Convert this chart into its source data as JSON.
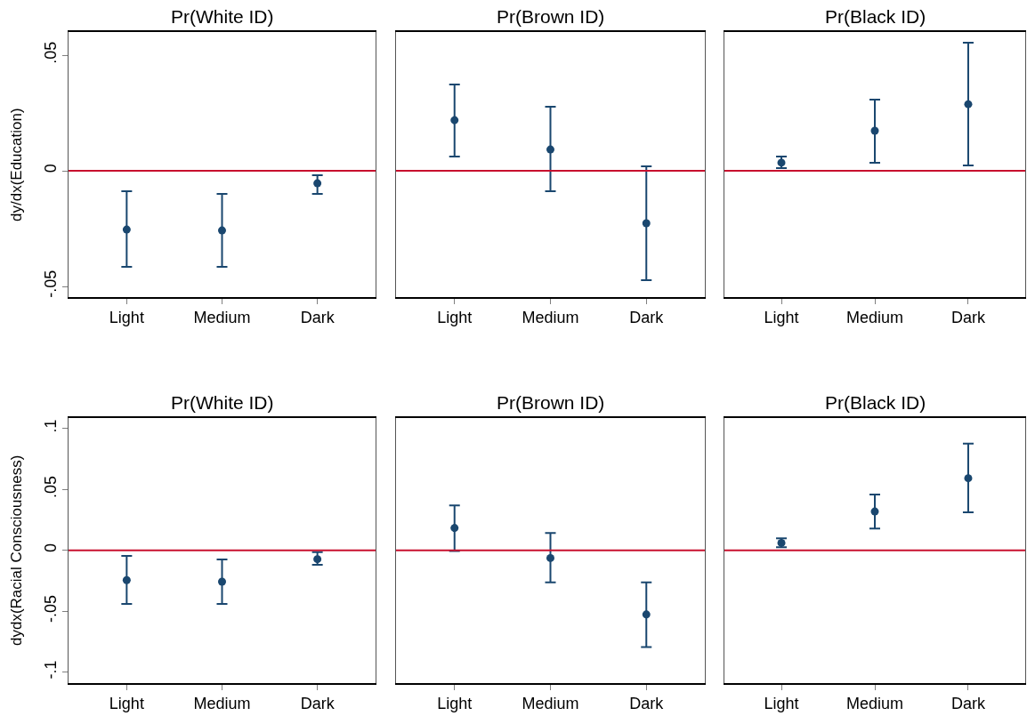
{
  "chart_data": [
    {
      "type": "scatter",
      "title": "Pr(White ID)",
      "ylabel": "dy/dx(Education)",
      "categories": [
        "Light",
        "Medium",
        "Dark"
      ],
      "values": [
        -0.0254,
        -0.0258,
        -0.0054
      ],
      "errors": [
        [
          -0.0415,
          -0.0088
        ],
        [
          -0.0415,
          -0.01
        ],
        [
          -0.01,
          -0.0019
        ]
      ],
      "color": "#1a476f",
      "marker": "circle",
      "ylim": [
        -0.0546,
        0.06
      ],
      "yticks": [
        {
          "value": -0.05,
          "label": "-.05"
        },
        0,
        {
          "value": 0.05,
          "label": ".05"
        }
      ],
      "ref_lines": [
        {
          "axis": "y",
          "value": 0,
          "color": "#c8102e"
        }
      ]
    },
    {
      "type": "scatter",
      "title": "Pr(Brown ID)",
      "categories": [
        "Light",
        "Medium",
        "Dark"
      ],
      "values": [
        0.0219,
        0.0092,
        -0.0227
      ],
      "errors": [
        [
          0.0062,
          0.0373
        ],
        [
          -0.0088,
          0.0277
        ],
        [
          -0.0473,
          0.0019
        ]
      ],
      "color": "#1a476f",
      "marker": "circle",
      "ylim": [
        -0.0546,
        0.06
      ],
      "tick_labels": "x",
      "ref_lines": [
        {
          "axis": "y",
          "value": 0,
          "color": "#c8102e"
        }
      ]
    },
    {
      "type": "scatter",
      "title": "Pr(Black ID)",
      "categories": [
        "Light",
        "Medium",
        "Dark"
      ],
      "values": [
        0.0035,
        0.0173,
        0.0288
      ],
      "errors": [
        [
          0.0012,
          0.0062
        ],
        [
          0.0035,
          0.0308
        ],
        [
          0.0023,
          0.0554
        ]
      ],
      "color": "#1a476f",
      "marker": "circle",
      "ylim": [
        -0.0546,
        0.06
      ],
      "tick_labels": "x",
      "ref_lines": [
        {
          "axis": "y",
          "value": 0,
          "color": "#c8102e"
        }
      ]
    },
    {
      "type": "scatter",
      "title": "Pr(White ID)",
      "ylabel": "dydx(Racial Consciousness)",
      "categories": [
        "Light",
        "Medium",
        "Dark"
      ],
      "values": [
        -0.0245,
        -0.0258,
        -0.0073
      ],
      "errors": [
        [
          -0.044,
          -0.0046
        ],
        [
          -0.044,
          -0.0075
        ],
        [
          -0.0119,
          -0.0015
        ]
      ],
      "color": "#1a476f",
      "marker": "circle",
      "ylim": [
        -0.109,
        0.1085
      ],
      "yticks": [
        {
          "value": -0.1,
          "label": "-.1"
        },
        {
          "value": -0.05,
          "label": "-.05"
        },
        0,
        {
          "value": 0.05,
          "label": ".05"
        },
        {
          "value": 0.1,
          "label": ".1"
        }
      ],
      "ref_lines": [
        {
          "axis": "y",
          "value": 0,
          "color": "#c8102e"
        }
      ]
    },
    {
      "type": "scatter",
      "title": "Pr(Brown ID)",
      "categories": [
        "Light",
        "Medium",
        "Dark"
      ],
      "values": [
        0.0183,
        -0.0064,
        -0.0527
      ],
      "errors": [
        [
          -0.0006,
          0.0368
        ],
        [
          -0.0264,
          0.0142
        ],
        [
          -0.0794,
          -0.0264
        ]
      ],
      "color": "#1a476f",
      "marker": "circle",
      "ylim": [
        -0.109,
        0.1085
      ],
      "tick_labels": "x",
      "ref_lines": [
        {
          "axis": "y",
          "value": 0,
          "color": "#c8102e"
        }
      ]
    },
    {
      "type": "scatter",
      "title": "Pr(Black ID)",
      "categories": [
        "Light",
        "Medium",
        "Dark"
      ],
      "values": [
        0.006,
        0.0318,
        0.0591
      ],
      "errors": [
        [
          0.0024,
          0.0098
        ],
        [
          0.0179,
          0.0457
        ],
        [
          0.0312,
          0.0875
        ]
      ],
      "color": "#1a476f",
      "marker": "circle",
      "ylim": [
        -0.109,
        0.1085
      ],
      "tick_labels": "x",
      "ref_lines": [
        {
          "axis": "y",
          "value": 0,
          "color": "#c8102e"
        }
      ]
    }
  ]
}
